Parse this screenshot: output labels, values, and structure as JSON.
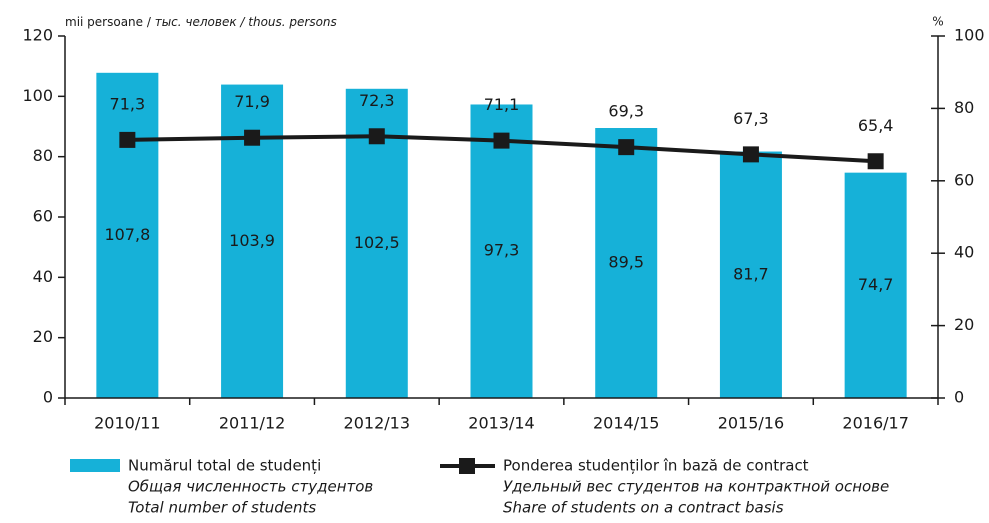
{
  "chart_data": {
    "type": "bar-line",
    "ylabel": [
      "mii persoane / ",
      "тыс. человек / thous. persons"
    ],
    "y2label": "%",
    "categories": [
      "2010/11",
      "2011/12",
      "2012/13",
      "2013/14",
      "2014/15",
      "2015/16",
      "2016/17"
    ],
    "series": [
      {
        "name": "Numărul total de studenți",
        "subnames": [
          "Общая численность студентов",
          "Total number of students"
        ],
        "type": "bar",
        "color": "#16b1d8",
        "axis": "y",
        "values": [
          107.8,
          103.9,
          102.5,
          97.3,
          89.5,
          81.7,
          74.7
        ],
        "value_labels": [
          "107,8",
          "103,9",
          "102,5",
          "97,3",
          "89,5",
          "81,7",
          "74,7"
        ]
      },
      {
        "name": "Ponderea studenților în bază de contract",
        "subnames": [
          "Удельный вес студентов на контрактной основе",
          "Share of students on a contract basis"
        ],
        "type": "line",
        "color": "#1a1a1a",
        "axis": "y2",
        "values": [
          71.3,
          71.9,
          72.3,
          71.1,
          69.3,
          67.3,
          65.4
        ],
        "value_labels": [
          "71,3",
          "71,9",
          "72,3",
          "71,1",
          "69,3",
          "67,3",
          "65,4"
        ]
      }
    ],
    "ylim": [
      0,
      120
    ],
    "yticks": [
      0,
      20,
      40,
      60,
      80,
      100,
      120
    ],
    "y2lim": [
      0,
      100
    ],
    "y2ticks": [
      0,
      20,
      40,
      60,
      80,
      100
    ],
    "grid": false
  }
}
